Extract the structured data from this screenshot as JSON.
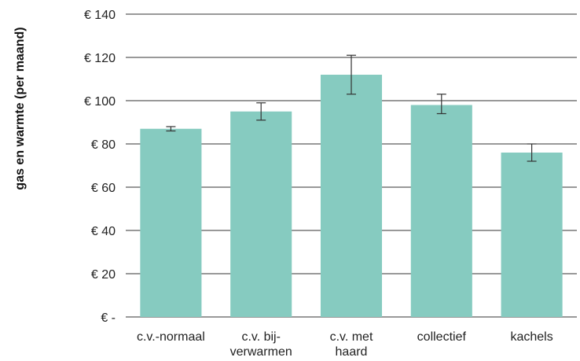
{
  "chart_data": {
    "type": "bar",
    "title": "",
    "xlabel": "",
    "ylabel": "gas en warmte (per maand)",
    "categories": [
      [
        "c.v.-normaal"
      ],
      [
        "c.v. bij-",
        "verwarmen"
      ],
      [
        "c.v. met",
        "haard"
      ],
      [
        "collectief"
      ],
      [
        "kachels"
      ]
    ],
    "values": [
      87,
      95,
      112,
      98,
      76
    ],
    "error_low": [
      86,
      91,
      103,
      94,
      72
    ],
    "error_high": [
      88,
      99,
      121,
      103,
      80
    ],
    "ylim": [
      0,
      140
    ],
    "yticks": [
      0,
      20,
      40,
      60,
      80,
      100,
      120,
      140
    ],
    "ytick_labels": [
      "€ -",
      "€ 20",
      "€ 40",
      "€ 60",
      "€ 80",
      "€ 100",
      "€ 120",
      "€ 140"
    ],
    "grid": true,
    "colors": {
      "bar": "#86cbc0",
      "grid": "#333333",
      "error_bar": "#333333"
    }
  }
}
